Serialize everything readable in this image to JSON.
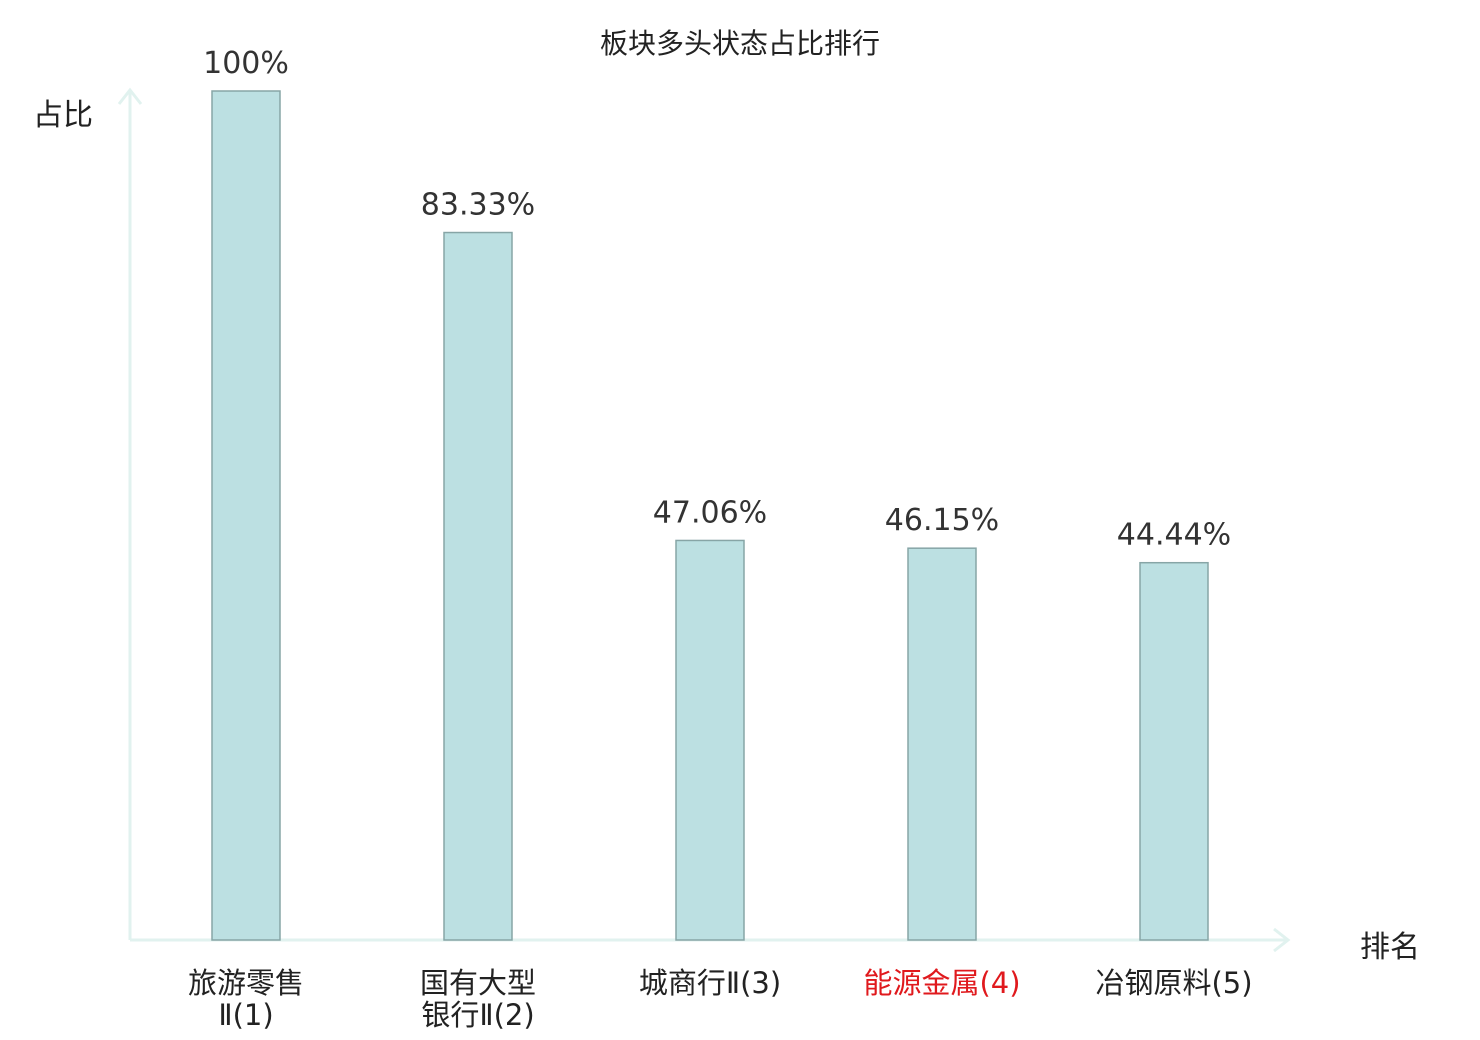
{
  "chart_data": {
    "type": "bar",
    "title": "板块多头状态占比排行",
    "xlabel": "排名",
    "ylabel": "占比",
    "ylim": [
      0,
      100
    ],
    "value_suffix": "%",
    "grid": false,
    "categories": [
      {
        "lines": [
          "旅游零售",
          "Ⅱ(1)"
        ],
        "highlight": false
      },
      {
        "lines": [
          "国有大型",
          "银行Ⅱ(2)"
        ],
        "highlight": false
      },
      {
        "lines": [
          "城商行Ⅱ(3)"
        ],
        "highlight": false
      },
      {
        "lines": [
          "能源金属(4)"
        ],
        "highlight": true
      },
      {
        "lines": [
          "冶钢原料(5)"
        ],
        "highlight": false
      }
    ],
    "values": [
      100,
      83.33,
      47.06,
      46.15,
      44.44
    ],
    "value_labels": [
      "100%",
      "83.33%",
      "47.06%",
      "46.15%",
      "44.44%"
    ]
  },
  "colors": {
    "bar_fill": "#bce0e2",
    "bar_stroke": "#87a5a6",
    "axis": "#e1f2ef",
    "highlight_label": "#e0191d",
    "text": "#222222",
    "value_text": "#333333"
  }
}
